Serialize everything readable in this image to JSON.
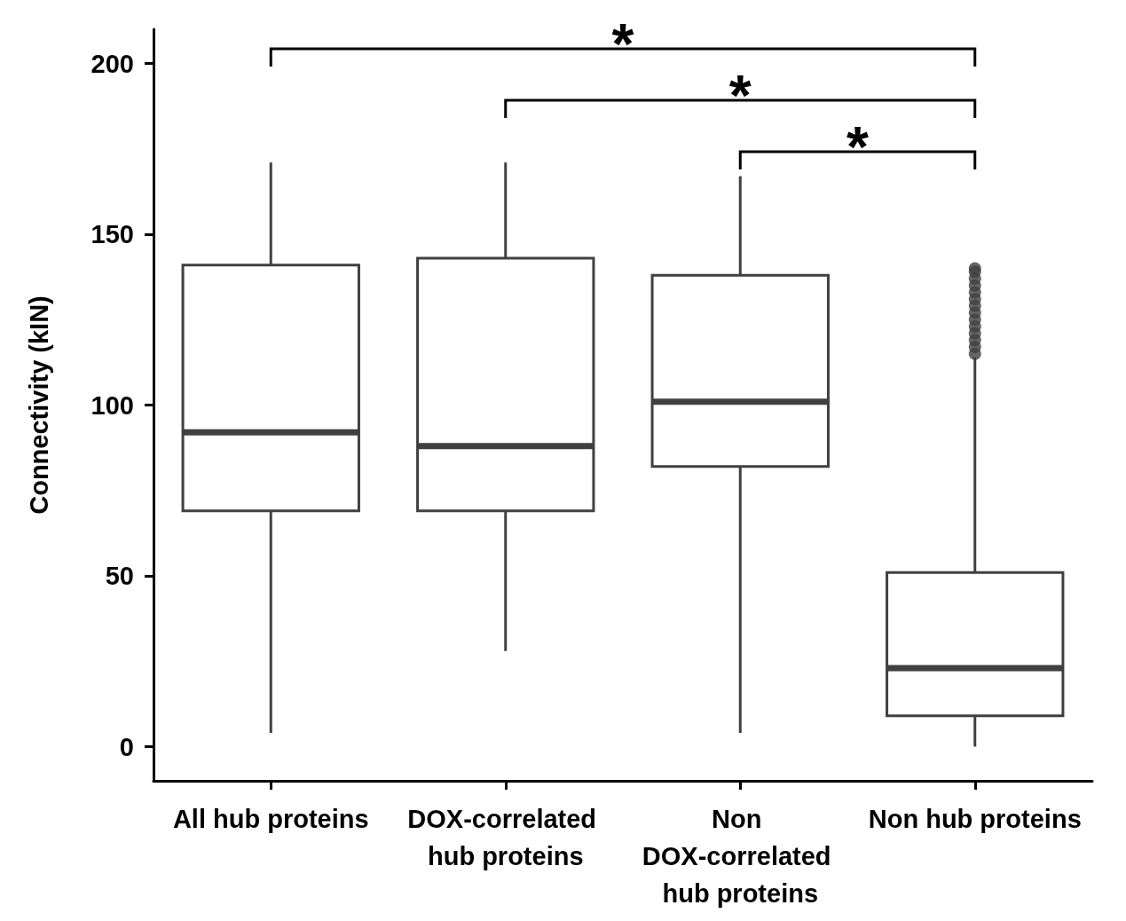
{
  "chart_data": {
    "type": "box",
    "ylabel": "Connectivity (kIN)",
    "categories": [
      "All hub proteins",
      "DOX-correlated hub proteins",
      "Non DOX-correlated hub proteins",
      "Non hub proteins"
    ],
    "boxes": [
      {
        "low": 4,
        "q1": 69,
        "median": 92,
        "q3": 141,
        "high": 171
      },
      {
        "low": 28,
        "q1": 69,
        "median": 88,
        "q3": 143,
        "high": 171
      },
      {
        "low": 4,
        "q1": 82,
        "median": 101,
        "q3": 138,
        "high": 167
      },
      {
        "low": 0,
        "q1": 9,
        "median": 23,
        "q3": 51,
        "high": 114,
        "outliers": [
          115,
          117,
          119,
          121,
          123,
          125,
          127,
          129,
          131,
          133,
          135,
          137,
          139,
          140
        ]
      }
    ],
    "color": "#404040",
    "ylim": [
      -10,
      210
    ],
    "yticks": [
      0,
      50,
      100,
      150,
      200
    ],
    "grid": false,
    "annotations": [
      "*",
      "*",
      "*"
    ]
  }
}
